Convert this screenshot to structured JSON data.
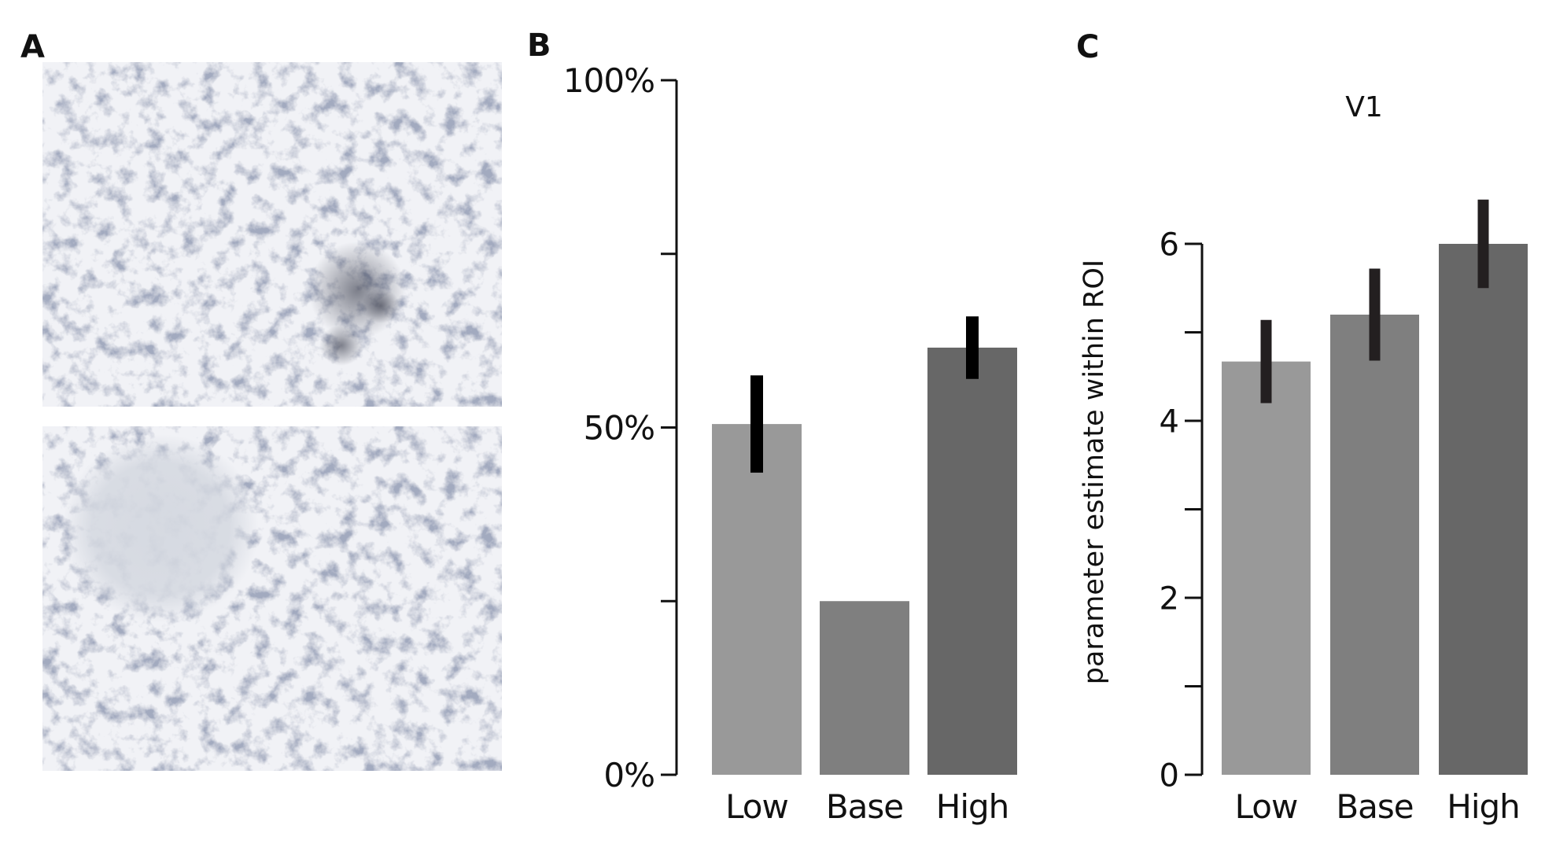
{
  "panel_labels": {
    "a": "A",
    "b": "B",
    "c": "C"
  },
  "stimuli": [
    {
      "variant": "target-present"
    },
    {
      "variant": "target-removed"
    }
  ],
  "colors": {
    "low": "#999999",
    "base": "#7f7f7f",
    "high": "#676767",
    "error_bar_b": "#000000",
    "error_bar_c": "#231f20"
  },
  "chart_data": [
    {
      "panel": "B",
      "type": "bar",
      "title": "",
      "xlabel": "",
      "ylabel": "",
      "categories": [
        "Low",
        "Base",
        "High"
      ],
      "values": [
        50.5,
        25,
        61.5
      ],
      "errors": [
        7,
        0,
        4.5
      ],
      "ylim": [
        0,
        100
      ],
      "yticks": [
        0,
        25,
        50,
        75,
        100
      ],
      "ytick_labels": [
        "0%",
        "",
        "50%",
        "",
        "100%"
      ]
    },
    {
      "panel": "C",
      "type": "bar",
      "title": "V1",
      "xlabel": "",
      "ylabel": "parameter estimate within ROI",
      "categories": [
        "Low",
        "Base",
        "High"
      ],
      "values": [
        4.67,
        5.2,
        6.0
      ],
      "errors": [
        0.47,
        0.52,
        0.5
      ],
      "ylim": [
        0,
        6
      ],
      "yticks": [
        0,
        1,
        2,
        3,
        4,
        5,
        6
      ],
      "ytick_labels": [
        "0",
        "",
        "2",
        "",
        "4",
        "",
        "6"
      ]
    }
  ]
}
